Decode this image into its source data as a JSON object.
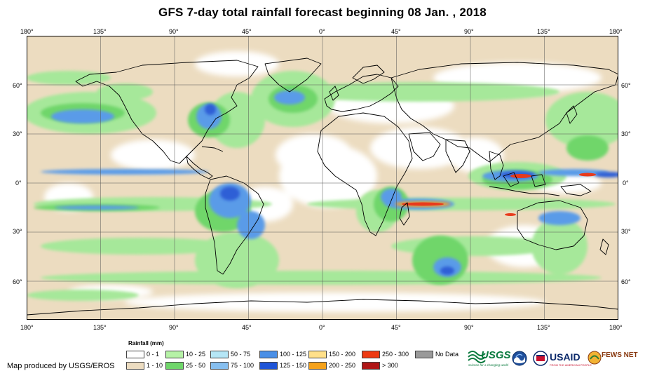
{
  "title": "GFS 7-day total rainfall forecast beginning 08 Jan. , 2018",
  "map": {
    "lon_ticks": [
      "180°",
      "135°",
      "90°",
      "45°",
      "0°",
      "45°",
      "90°",
      "135°",
      "180°"
    ],
    "lat_ticks": [
      "60°",
      "30°",
      "0°",
      "30°",
      "60°"
    ],
    "colors": {
      "ocean_dry": "#ffffff",
      "light": "#ecdcc0",
      "green": "#a6e89a",
      "green_dark": "#6fd66a",
      "blue_light": "#a9dcf2",
      "blue": "#5a9be8",
      "blue_dark": "#2f5fd6",
      "red": "#e83a1c",
      "orange": "#f7a320",
      "coast": "#000000"
    }
  },
  "legend": {
    "title": "Rainfall (mm)",
    "items": [
      {
        "label": "0 - 1",
        "color": "#ffffff"
      },
      {
        "label": "1 - 10",
        "color": "#ecdcc0"
      },
      {
        "label": "10 - 25",
        "color": "#b6f2a6"
      },
      {
        "label": "25 - 50",
        "color": "#6fd66a"
      },
      {
        "label": "50 - 75",
        "color": "#b5e6f6"
      },
      {
        "label": "75 - 100",
        "color": "#86bff0"
      },
      {
        "label": "100 - 125",
        "color": "#4a8fe6"
      },
      {
        "label": "125 - 150",
        "color": "#1f55d8"
      },
      {
        "label": "150 - 200",
        "color": "#ffe08a"
      },
      {
        "label": "200 - 250",
        "color": "#f6a21a"
      },
      {
        "label": "250 - 300",
        "color": "#ee3a12"
      },
      {
        "label": "> 300",
        "color": "#b01616"
      },
      {
        "label": "No Data",
        "color": "#9a9a9a"
      }
    ]
  },
  "credit": "Map produced by USGS/EROS",
  "logos": {
    "usgs": "USGS",
    "usgs_tagline": "science for a changing world",
    "usaid": "USAID",
    "usaid_tagline": "FROM THE AMERICAN PEOPLE",
    "fews": "FEWS NET"
  }
}
